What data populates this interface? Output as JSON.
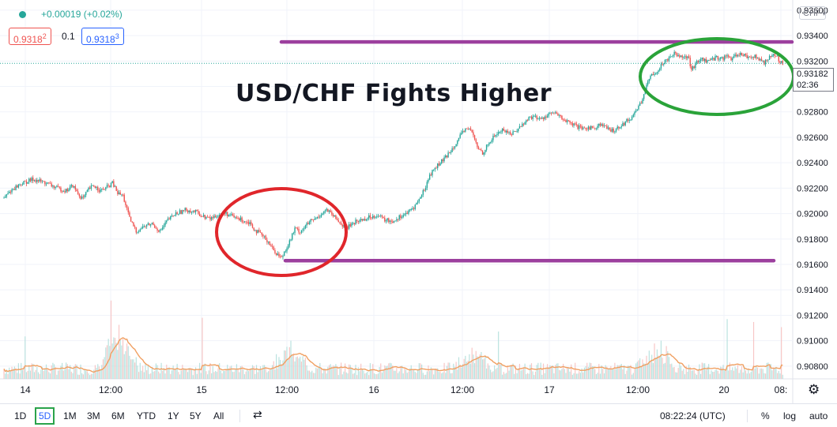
{
  "header": {
    "change_text": "+0.00019 (+0.02%)",
    "bid": "0.9318",
    "bid_small": "2",
    "spread": "0.1",
    "ask": "0.9318",
    "ask_small": "3",
    "dot_color": "#26a69a",
    "bid_color": "#ef5350",
    "ask_color": "#2962ff"
  },
  "symbol_tag": "CHF",
  "overlay_title": "USD/CHF Fights Higher",
  "price_tag": {
    "price": "0.93182",
    "countdown": "02:36"
  },
  "chart_data": {
    "type": "candlestick",
    "title": "USD/CHF Fights Higher",
    "ylim": [
      0.907,
      0.9368
    ],
    "y_ticks": [
      "0.93600",
      "0.93400",
      "0.93200",
      "0.93000",
      "0.92800",
      "0.92600",
      "0.92400",
      "0.92200",
      "0.92000",
      "0.91800",
      "0.91600",
      "0.91400",
      "0.91200",
      "0.91000",
      "0.90800"
    ],
    "x_ticks": [
      "14",
      "12:00",
      "15",
      "12:00",
      "16",
      "12:00",
      "17",
      "12:00",
      "20",
      "08:"
    ],
    "last_price": 0.93182,
    "price_path": [
      [
        0,
        0.9212
      ],
      [
        5,
        0.9218
      ],
      [
        12,
        0.9223
      ],
      [
        22,
        0.9227
      ],
      [
        32,
        0.9224
      ],
      [
        40,
        0.922
      ],
      [
        47,
        0.9218
      ],
      [
        52,
        0.9222
      ],
      [
        57,
        0.9214
      ],
      [
        60,
        0.9212
      ],
      [
        64,
        0.9219
      ],
      [
        68,
        0.9222
      ],
      [
        73,
        0.9218
      ],
      [
        77,
        0.922
      ],
      [
        82,
        0.9224
      ],
      [
        86,
        0.9216
      ],
      [
        90,
        0.9214
      ],
      [
        95,
        0.9196
      ],
      [
        100,
        0.9186
      ],
      [
        106,
        0.919
      ],
      [
        112,
        0.9192
      ],
      [
        118,
        0.9186
      ],
      [
        124,
        0.9195
      ],
      [
        130,
        0.92
      ],
      [
        138,
        0.9203
      ],
      [
        146,
        0.9201
      ],
      [
        150,
        0.9198
      ],
      [
        156,
        0.9196
      ],
      [
        162,
        0.9199
      ],
      [
        168,
        0.92
      ],
      [
        174,
        0.9197
      ],
      [
        180,
        0.9195
      ],
      [
        186,
        0.9193
      ],
      [
        190,
        0.9187
      ],
      [
        196,
        0.9182
      ],
      [
        200,
        0.9178
      ],
      [
        204,
        0.9171
      ],
      [
        207,
        0.9168
      ],
      [
        210,
        0.9165
      ],
      [
        212,
        0.917
      ],
      [
        216,
        0.9178
      ],
      [
        220,
        0.9188
      ],
      [
        224,
        0.9186
      ],
      [
        228,
        0.919
      ],
      [
        232,
        0.9194
      ],
      [
        236,
        0.9196
      ],
      [
        240,
        0.92
      ],
      [
        244,
        0.9203
      ],
      [
        248,
        0.9199
      ],
      [
        252,
        0.9195
      ],
      [
        256,
        0.9191
      ],
      [
        260,
        0.9189
      ],
      [
        264,
        0.9193
      ],
      [
        270,
        0.9195
      ],
      [
        276,
        0.9197
      ],
      [
        282,
        0.9199
      ],
      [
        288,
        0.9195
      ],
      [
        294,
        0.9194
      ],
      [
        300,
        0.9198
      ],
      [
        306,
        0.9201
      ],
      [
        310,
        0.9205
      ],
      [
        314,
        0.9211
      ],
      [
        318,
        0.9219
      ],
      [
        322,
        0.923
      ],
      [
        326,
        0.9236
      ],
      [
        330,
        0.924
      ],
      [
        334,
        0.9244
      ],
      [
        338,
        0.925
      ],
      [
        342,
        0.9256
      ],
      [
        346,
        0.9262
      ],
      [
        350,
        0.9268
      ],
      [
        354,
        0.9264
      ],
      [
        358,
        0.9252
      ],
      [
        362,
        0.9248
      ],
      [
        366,
        0.9254
      ],
      [
        370,
        0.926
      ],
      [
        374,
        0.9264
      ],
      [
        378,
        0.9266
      ],
      [
        382,
        0.9263
      ],
      [
        386,
        0.9264
      ],
      [
        390,
        0.9268
      ],
      [
        394,
        0.9272
      ],
      [
        398,
        0.9276
      ],
      [
        402,
        0.9276
      ],
      [
        406,
        0.9274
      ],
      [
        410,
        0.9277
      ],
      [
        414,
        0.9279
      ],
      [
        418,
        0.9278
      ],
      [
        422,
        0.9275
      ],
      [
        426,
        0.9272
      ],
      [
        430,
        0.927
      ],
      [
        434,
        0.9268
      ],
      [
        438,
        0.9266
      ],
      [
        442,
        0.9268
      ],
      [
        446,
        0.9267
      ],
      [
        450,
        0.927
      ],
      [
        454,
        0.9269
      ],
      [
        458,
        0.9265
      ],
      [
        462,
        0.9266
      ],
      [
        466,
        0.9269
      ],
      [
        470,
        0.9272
      ],
      [
        474,
        0.9275
      ],
      [
        478,
        0.9281
      ],
      [
        482,
        0.9288
      ],
      [
        486,
        0.93
      ],
      [
        490,
        0.931
      ],
      [
        494,
        0.9312
      ],
      [
        498,
        0.9318
      ],
      [
        502,
        0.9322
      ],
      [
        506,
        0.9326
      ],
      [
        510,
        0.9325
      ],
      [
        514,
        0.9324
      ],
      [
        518,
        0.9322
      ],
      [
        520,
        0.9312
      ],
      [
        523,
        0.9318
      ],
      [
        527,
        0.9322
      ],
      [
        531,
        0.932
      ],
      [
        535,
        0.9321
      ],
      [
        539,
        0.9323
      ],
      [
        543,
        0.9322
      ],
      [
        547,
        0.9324
      ],
      [
        551,
        0.9321
      ],
      [
        555,
        0.9326
      ],
      [
        559,
        0.9325
      ],
      [
        563,
        0.9323
      ],
      [
        567,
        0.9324
      ],
      [
        571,
        0.9321
      ],
      [
        575,
        0.9319
      ],
      [
        579,
        0.9323
      ],
      [
        583,
        0.9325
      ],
      [
        587,
        0.932
      ],
      [
        590,
        0.93182
      ]
    ],
    "annotations": {
      "resistance_line": 0.9335,
      "support_line": 0.9163,
      "line_color": "#9c3f9e",
      "support_circle_color": "#e0262b",
      "resistance_circle_color": "#2aa339"
    },
    "colors": {
      "up": "#26a69a",
      "down": "#ef5350",
      "volume_ma": "#f0a062"
    }
  },
  "bottom_bar": {
    "timeframes": [
      "1D",
      "5D",
      "1M",
      "3M",
      "6M",
      "YTD",
      "1Y",
      "5Y",
      "All"
    ],
    "active_timeframe": "5D",
    "clock": "08:22:24 (UTC)",
    "percent_label": "%",
    "log_label": "log",
    "auto_label": "auto"
  }
}
